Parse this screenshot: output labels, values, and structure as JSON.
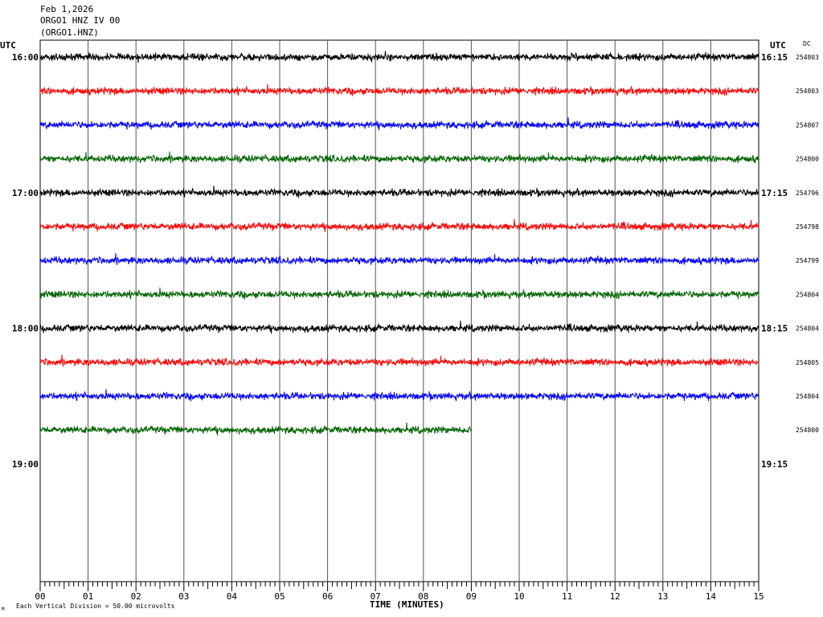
{
  "header": {
    "date": "Feb 1,2026",
    "channel": "ORGO1 HNZ IV 00",
    "station": "(ORGO1.HNZ)"
  },
  "left_timezone": "UTC",
  "right_timezone": "UTC",
  "dc_header": "DC",
  "footer": {
    "scale_note": "Each Vertical Division =   50.00 microvolts",
    "corner_mark": "M"
  },
  "chart_data": {
    "type": "line",
    "title": "",
    "xlabel": "TIME (MINUTES)",
    "ylabel": "",
    "xlim": [
      0,
      15
    ],
    "x_ticks": [
      "00",
      "01",
      "02",
      "03",
      "04",
      "05",
      "06",
      "07",
      "08",
      "09",
      "10",
      "11",
      "12",
      "13",
      "14",
      "15"
    ],
    "hour_labels_left": [
      "16:00",
      "17:00",
      "18:00",
      "19:00"
    ],
    "hour_labels_right": [
      "16:15",
      "17:15",
      "18:15",
      "19:15"
    ],
    "grid": true,
    "line_colors": [
      "#000000",
      "#ff0000",
      "#0000ff",
      "#006400"
    ],
    "series": [
      {
        "row": 0,
        "dc": "254803",
        "color": "#000000",
        "end_minute": 15
      },
      {
        "row": 1,
        "dc": "254803",
        "color": "#ff0000",
        "end_minute": 15
      },
      {
        "row": 2,
        "dc": "254807",
        "color": "#0000ff",
        "end_minute": 15
      },
      {
        "row": 3,
        "dc": "254800",
        "color": "#006400",
        "end_minute": 15
      },
      {
        "row": 4,
        "dc": "254796",
        "color": "#000000",
        "end_minute": 15
      },
      {
        "row": 5,
        "dc": "254798",
        "color": "#ff0000",
        "end_minute": 15
      },
      {
        "row": 6,
        "dc": "254799",
        "color": "#0000ff",
        "end_minute": 15
      },
      {
        "row": 7,
        "dc": "254804",
        "color": "#006400",
        "end_minute": 15
      },
      {
        "row": 8,
        "dc": "254804",
        "color": "#000000",
        "end_minute": 15
      },
      {
        "row": 9,
        "dc": "254805",
        "color": "#ff0000",
        "end_minute": 15
      },
      {
        "row": 10,
        "dc": "254804",
        "color": "#0000ff",
        "end_minute": 15
      },
      {
        "row": 11,
        "dc": "254800",
        "color": "#006400",
        "end_minute": 9
      }
    ]
  }
}
